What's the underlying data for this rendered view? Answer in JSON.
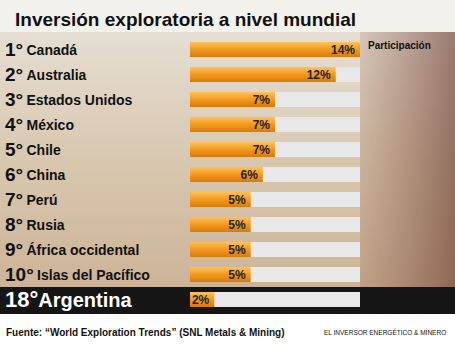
{
  "chart_data": {
    "type": "bar",
    "orientation": "horizontal",
    "title": "Inversión exploratoria a nivel mundial",
    "annotations": [
      "Participación",
      "Fuente: “World Exploration Trends” (SNL Metals & Mining)",
      "EL INVERSOR ENERGÉTICO & MINERO"
    ],
    "ranks": [
      "1°",
      "2°",
      "3°",
      "4°",
      "5°",
      "6°",
      "7°",
      "8°",
      "9°",
      "10°",
      "18°"
    ],
    "categories": [
      "Canadá",
      "Australia",
      "Estados Unidos",
      "México",
      "Chile",
      "China",
      "Perú",
      "Rusia",
      "África occidental",
      "Islas del Pacífico",
      "Argentina"
    ],
    "values": [
      14,
      12,
      7,
      7,
      7,
      6,
      5,
      5,
      5,
      5,
      2
    ],
    "value_labels": [
      "14%",
      "12%",
      "7%",
      "7%",
      "7%",
      "6%",
      "5%",
      "5%",
      "5%",
      "5%",
      "2%"
    ],
    "color": "#f39a1e",
    "xlim": [
      0,
      14
    ],
    "grid": false,
    "data_labels": true,
    "tick_labels": "y"
  }
}
